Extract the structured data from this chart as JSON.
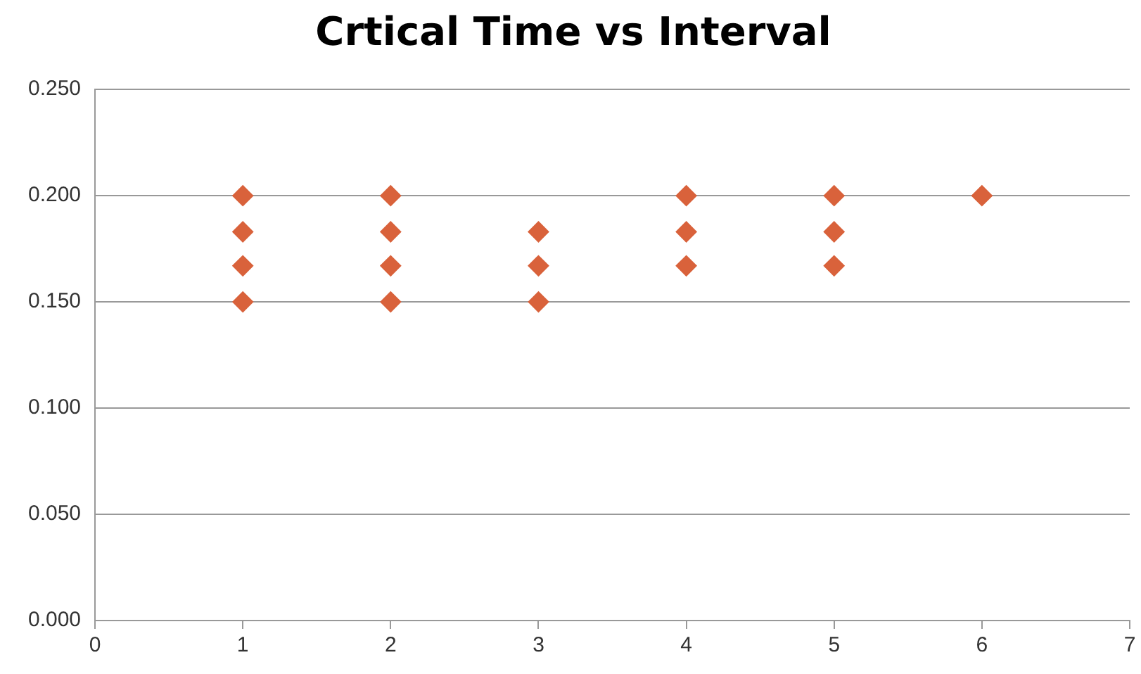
{
  "chart_data": {
    "type": "scatter",
    "title": "Crtical Time vs Interval",
    "x": [
      1,
      1,
      1,
      1,
      2,
      2,
      2,
      2,
      3,
      3,
      3,
      4,
      4,
      4,
      5,
      5,
      5,
      6
    ],
    "values": [
      0.2,
      0.183,
      0.167,
      0.15,
      0.2,
      0.183,
      0.167,
      0.15,
      0.183,
      0.167,
      0.15,
      0.2,
      0.183,
      0.167,
      0.2,
      0.183,
      0.167,
      0.2
    ],
    "color": "#d9623b",
    "marker": "diamond",
    "grid": "y",
    "legend": false,
    "xlim": [
      0,
      7
    ],
    "xticks": [
      0,
      1,
      2,
      3,
      4,
      5,
      6,
      7
    ],
    "ylim": [
      0,
      0.25
    ],
    "yticks": [
      {
        "value": 0,
        "label": "0.000"
      },
      {
        "value": 0.05,
        "label": "0.050"
      },
      {
        "value": 0.1,
        "label": "0.100"
      },
      {
        "value": 0.15,
        "label": "0.150"
      },
      {
        "value": 0.2,
        "label": "0.200"
      },
      {
        "value": 0.25,
        "label": "0.250"
      }
    ]
  }
}
